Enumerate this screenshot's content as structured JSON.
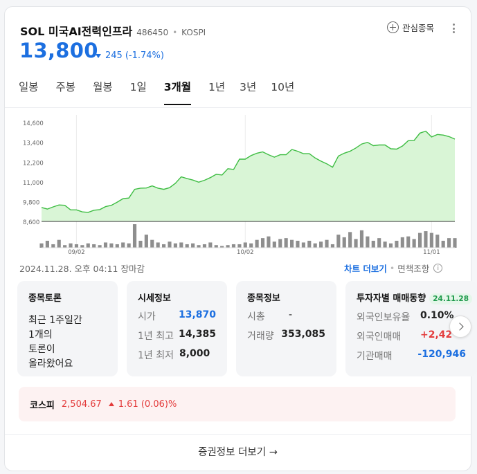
{
  "stock": {
    "name": "SOL 미국AI전력인프라",
    "code": "486450",
    "market": "KOSPI",
    "price": "13,800",
    "change_amount": "245",
    "change_percent": "(-1.74%)",
    "favorite_label": "관심종목",
    "change_color": "#1c6fe0"
  },
  "tabs": [
    {
      "label": "일봉",
      "active": false
    },
    {
      "label": "주봉",
      "active": false
    },
    {
      "label": "월봉",
      "active": false
    },
    {
      "label": "1일",
      "active": false
    },
    {
      "label": "3개월",
      "active": true
    },
    {
      "label": "1년",
      "active": false
    },
    {
      "label": "3년",
      "active": false
    },
    {
      "label": "10년",
      "active": false
    }
  ],
  "chart_data": {
    "type": "area",
    "y_ticks": [
      "14,600",
      "13,400",
      "12,200",
      "11,000",
      "9,800",
      "8,600"
    ],
    "y_tick_values": [
      14600,
      13400,
      12200,
      11000,
      9800,
      8600
    ],
    "x_tick_labels": [
      "09/02",
      "10/02",
      "11/01"
    ],
    "x_tick_index": [
      6,
      35,
      67
    ],
    "ylim": [
      8600,
      14900
    ],
    "values": [
      9450,
      9350,
      9480,
      9600,
      9580,
      9300,
      9300,
      9180,
      9150,
      9280,
      9320,
      9500,
      9580,
      9770,
      9980,
      10020,
      10550,
      10620,
      10630,
      10760,
      10620,
      10550,
      10650,
      10920,
      11310,
      11200,
      11110,
      10980,
      11100,
      11260,
      11460,
      11420,
      11800,
      11760,
      12380,
      12380,
      12600,
      12740,
      12820,
      12650,
      12500,
      12650,
      12650,
      12970,
      12860,
      12710,
      12710,
      12450,
      12260,
      12100,
      11890,
      12570,
      12740,
      12860,
      13060,
      13300,
      13400,
      13200,
      13240,
      13240,
      13010,
      12990,
      13180,
      13500,
      13510,
      13960,
      14080,
      13730,
      13880,
      13840,
      13750,
      13600
    ],
    "volume": [
      5,
      8,
      4,
      9,
      3,
      5,
      4,
      3,
      5,
      4,
      3,
      6,
      5,
      4,
      6,
      5,
      27,
      8,
      15,
      9,
      6,
      4,
      7,
      5,
      6,
      4,
      5,
      3,
      4,
      6,
      3,
      2,
      3,
      4,
      4,
      6,
      5,
      9,
      11,
      13,
      7,
      10,
      11,
      9,
      8,
      6,
      8,
      5,
      7,
      9,
      4,
      15,
      12,
      18,
      10,
      20,
      13,
      8,
      11,
      7,
      5,
      8,
      12,
      13,
      10,
      17,
      19,
      17,
      15,
      8,
      11,
      11
    ],
    "area_color": "#d9f5d6",
    "line_color": "#3ebd43",
    "volume_color": "#8e8e8e",
    "grid": "x-only",
    "legend": "none"
  },
  "date_text": "2024.11.28. 오후 04:11 장마감",
  "chart_more_label": "차트 더보기",
  "disclaimer_label": "면책조항",
  "panels": {
    "forum": {
      "title": "종목토론",
      "text": "최근 1주일간\n1개의\n토론이\n올라왔어요"
    },
    "market": {
      "title": "시세정보",
      "rows": [
        {
          "k": "시가",
          "v": "13,870"
        },
        {
          "k": "1년 최고",
          "v": "14,385"
        },
        {
          "k": "1년 최저",
          "v": "8,000"
        }
      ]
    },
    "info": {
      "title": "종목정보",
      "rows": [
        {
          "k": "시총",
          "v": "-"
        },
        {
          "k": "거래량",
          "v": "353,085"
        }
      ]
    },
    "investor": {
      "title": "투자자별 매매동향",
      "badge": "24.11.28",
      "rows": [
        {
          "k": "외국인보유율",
          "v": "0.10%"
        },
        {
          "k": "외국인매매",
          "v": "+2,42"
        },
        {
          "k": "기관매매",
          "v": "-120,946"
        }
      ]
    }
  },
  "index": {
    "name": "코스피",
    "value": "2,504.67",
    "change": "1.61 (0.06)%",
    "color": "#e33c3c"
  },
  "footer_more_label": "증권정보 더보기 →"
}
